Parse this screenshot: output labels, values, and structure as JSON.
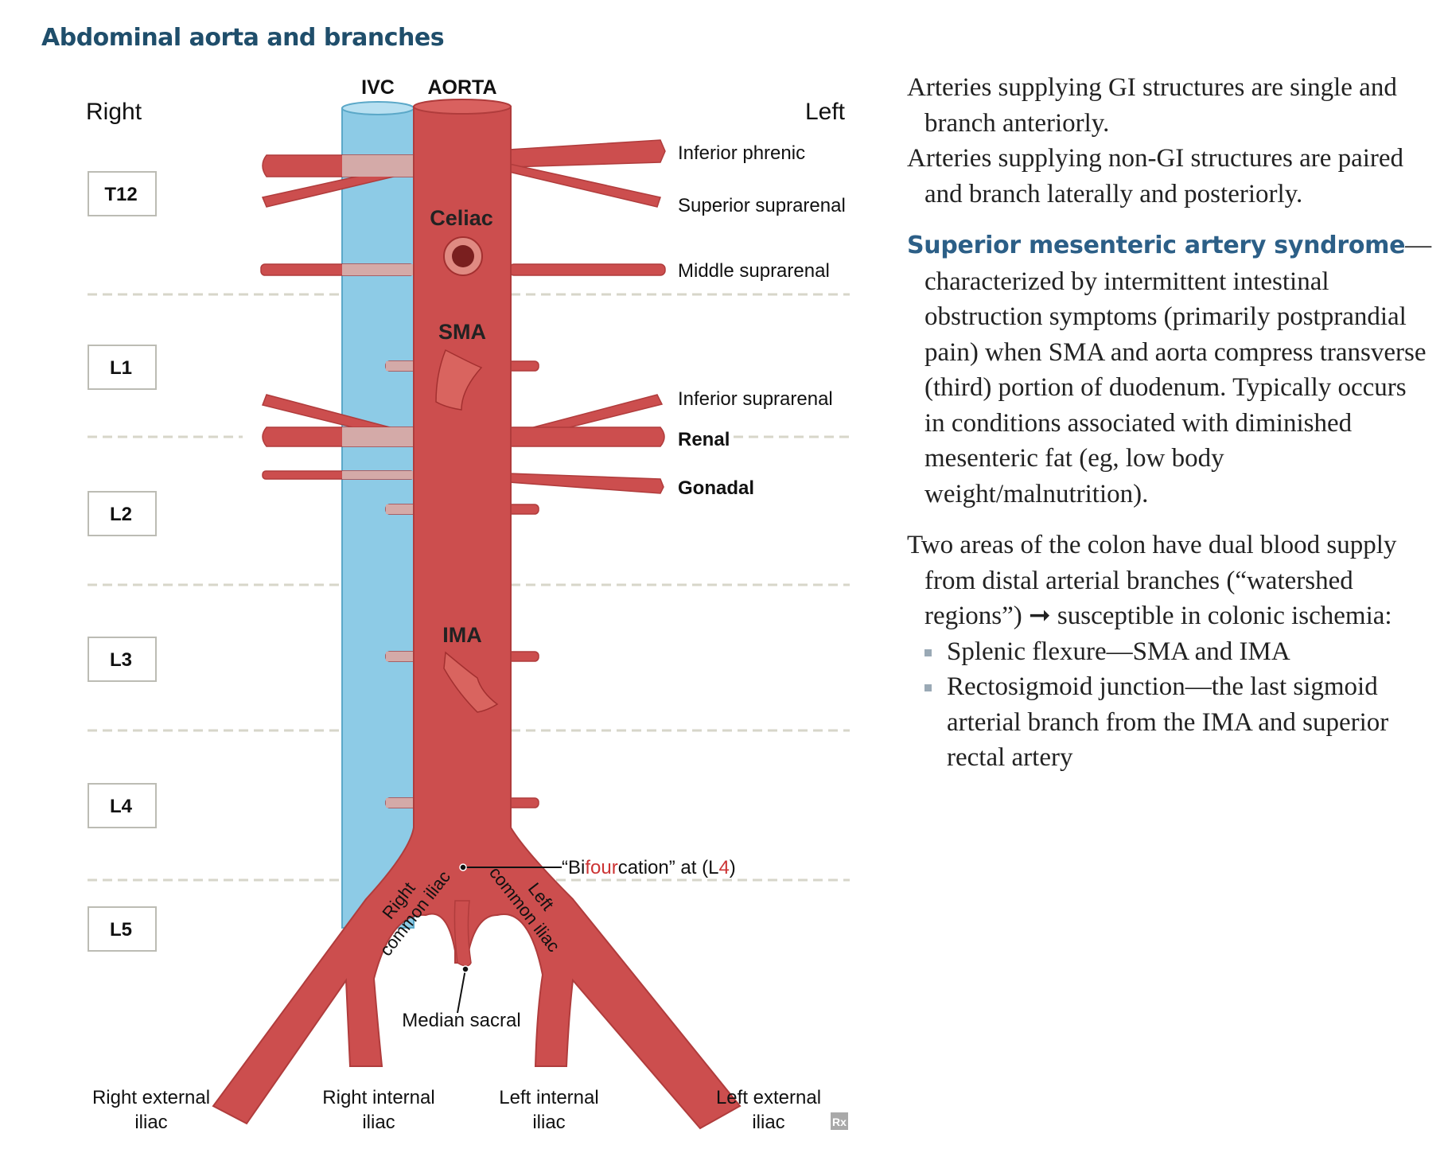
{
  "title": "Abdominal aorta and branches",
  "diagram": {
    "side_right": "Right",
    "side_left": "Left",
    "vessel_labels": {
      "ivc": "IVC",
      "aorta": "AORTA"
    },
    "vertebrae": [
      "T12",
      "L1",
      "L2",
      "L3",
      "L4",
      "L5"
    ],
    "trunk_labels": {
      "celiac": "Celiac",
      "sma": "SMA",
      "ima": "IMA"
    },
    "left_branches": {
      "inferior_phrenic": "Inferior phrenic",
      "superior_suprarenal": "Superior suprarenal",
      "middle_suprarenal": "Middle suprarenal",
      "inferior_suprarenal": "Inferior suprarenal",
      "renal": "Renal",
      "gonadal": "Gonadal"
    },
    "bifurcation": {
      "prefix": "“Bi",
      "highlight": "four",
      "middle": "cation” at (L",
      "level": "4",
      "suffix": ")"
    },
    "common_iliac": {
      "right_line1": "Right",
      "right_line2": "common iliac",
      "left_line1": "Left",
      "left_line2": "common iliac"
    },
    "median_sacral": "Median sacral",
    "iliac_labels": {
      "right_external": [
        "Right external",
        "iliac"
      ],
      "right_internal": [
        "Right internal",
        "iliac"
      ],
      "left_internal": [
        "Left internal",
        "iliac"
      ],
      "left_external": [
        "Left external",
        "iliac"
      ]
    },
    "rx_mark": "Rx",
    "colors": {
      "aorta": "#cc4e4e",
      "ivc": "#8dcbe6",
      "overlap": "#d4aaa8",
      "title": "#1f4e6b",
      "highlight": "#cc3333",
      "dash": "#d7d6ca"
    }
  },
  "notes": {
    "p1": "Arteries supplying GI structures are single and branch anteriorly.",
    "p2": "Arteries supplying non-GI structures are paired and branch laterally and posteriorly.",
    "sma_heading": "Superior mesenteric artery syndrome",
    "sma_dash": "—",
    "sma_text": "characterized by intermittent intestinal obstruction symptoms (primarily postprandial pain) when SMA and aorta compress transverse (third) portion of duodenum. Typically occurs in conditions associated with diminished mesenteric fat (eg, low body weight/malnutrition).",
    "watershed_intro": "Two areas of the colon have dual blood supply from distal arterial branches (“watershed regions”) ➞ susceptible in colonic ischemia:",
    "watershed_items": [
      "Splenic flexure—SMA and IMA",
      "Rectosigmoid junction—the last sigmoid arterial branch from the IMA and superior rectal artery"
    ]
  }
}
